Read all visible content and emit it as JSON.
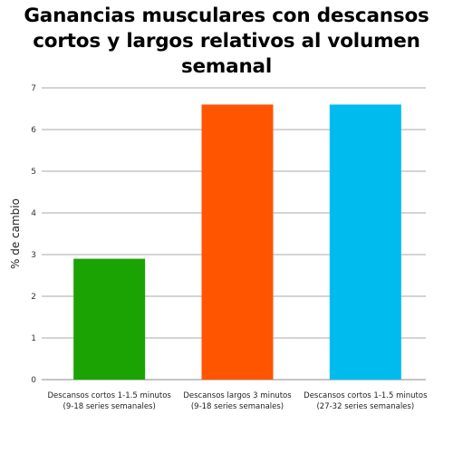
{
  "chart_data": {
    "type": "bar",
    "title_lines": [
      "Ganancias musculares con descansos",
      "cortos y largos relativos al volumen",
      "semanal"
    ],
    "ylabel": "% de cambio",
    "xlabel": "",
    "ylim": [
      0,
      7
    ],
    "yticks": [
      0,
      1,
      2,
      3,
      4,
      5,
      6,
      7
    ],
    "grid": true,
    "legend": "none",
    "categories": [
      [
        "Descansos cortos 1-1.5 minutos",
        "(9-18 series semanales)"
      ],
      [
        "Descansos largos 3 minutos",
        "(9-18 series semanales)"
      ],
      [
        "Descansos cortos 1-1.5 minutos",
        "(27-32 series semanales)"
      ]
    ],
    "values": [
      2.9,
      6.6,
      6.6
    ],
    "colors": [
      "#1ba303",
      "#ff5500",
      "#00bbee"
    ]
  }
}
